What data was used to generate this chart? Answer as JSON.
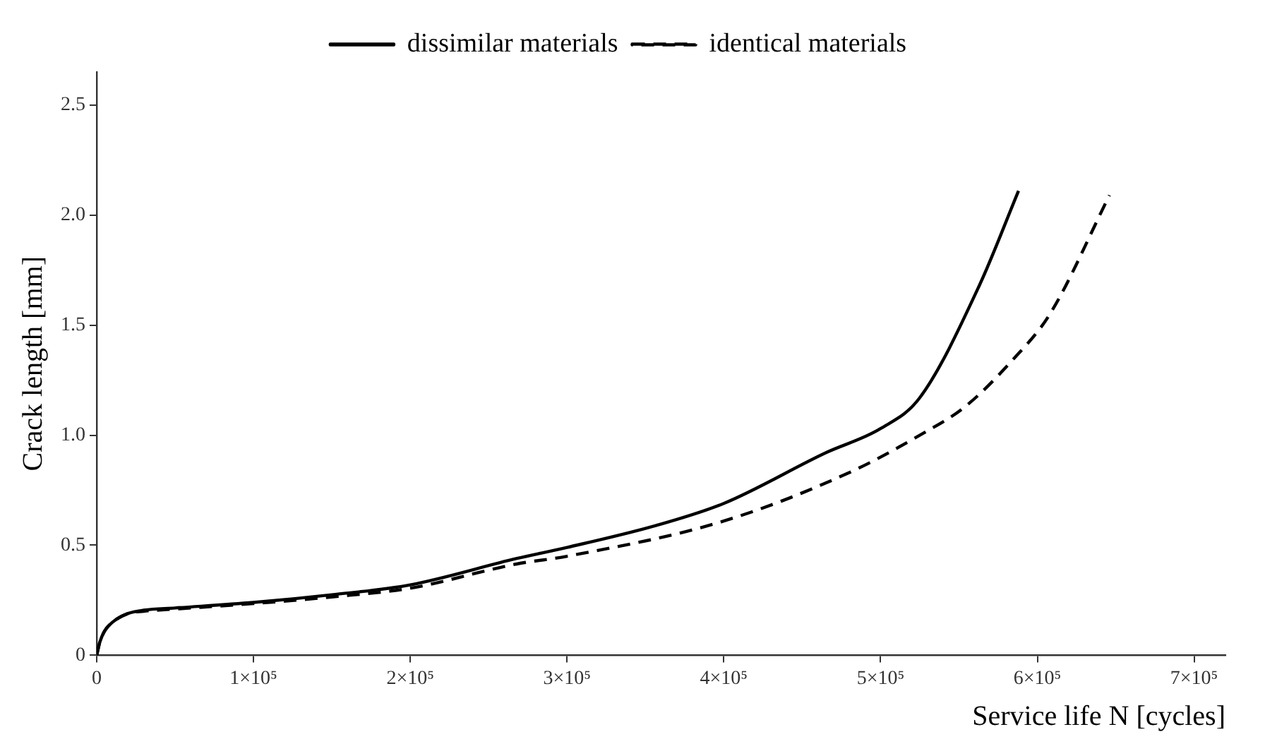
{
  "chart_data": {
    "type": "line",
    "xlabel": "Service life N [cycles]",
    "ylabel": "Crack length [mm]",
    "xlim": [
      0,
      720000
    ],
    "ylim": [
      0,
      2.65
    ],
    "xticks": [
      0,
      {
        "value": 100000,
        "label": "1×10⁵"
      },
      {
        "value": 200000,
        "label": "2×10⁵"
      },
      {
        "value": 300000,
        "label": "3×10⁵"
      },
      {
        "value": 400000,
        "label": "4×10⁵"
      },
      {
        "value": 500000,
        "label": "5×10⁵"
      },
      {
        "value": 600000,
        "label": "6×10⁵"
      },
      {
        "value": 700000,
        "label": "7×10⁵"
      }
    ],
    "yticks": [
      0,
      0.5,
      {
        "value": 1,
        "label": "1.0"
      },
      1.5,
      {
        "value": 2,
        "label": "2.0"
      },
      2.5
    ],
    "grid": false,
    "legend": "top",
    "marker": "none",
    "series": [
      {
        "name": "dissimilar materials",
        "color": "#000000",
        "line_style": "solid",
        "x": [
          0,
          2000,
          5000,
          10000,
          20000,
          30000,
          50000,
          100000,
          150000,
          200000,
          268000,
          300000,
          357000,
          400000,
          465000,
          500000,
          525000,
          563000,
          588000
        ],
        "values": [
          0,
          0.06,
          0.11,
          0.15,
          0.19,
          0.205,
          0.215,
          0.24,
          0.275,
          0.32,
          0.44,
          0.49,
          0.59,
          0.69,
          0.92,
          1.03,
          1.17,
          1.68,
          2.11
        ]
      },
      {
        "name": "identical materials",
        "color": "#000000",
        "line_style": "dashed",
        "x": [
          0,
          2000,
          5000,
          10000,
          20000,
          30000,
          50000,
          100000,
          150000,
          200000,
          268000,
          300000,
          400000,
          483000,
          525000,
          554000,
          584000,
          608000,
          646000
        ],
        "values": [
          0,
          0.06,
          0.11,
          0.15,
          0.19,
          0.2,
          0.21,
          0.235,
          0.265,
          0.305,
          0.415,
          0.45,
          0.61,
          0.84,
          1.0,
          1.13,
          1.34,
          1.55,
          2.09
        ]
      }
    ]
  }
}
